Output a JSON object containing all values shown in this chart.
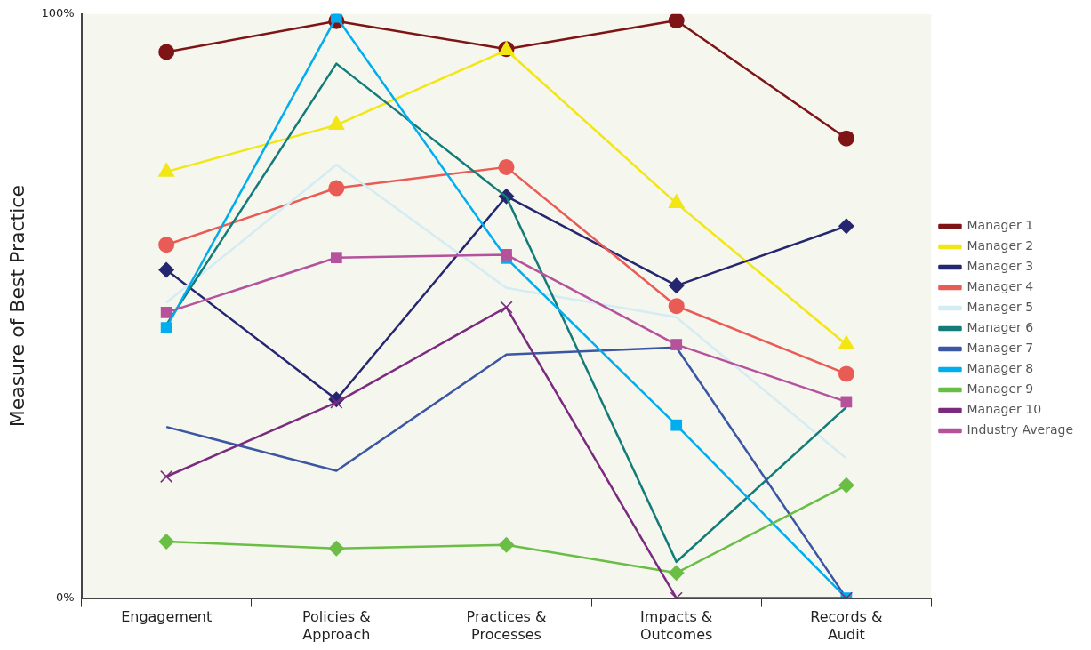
{
  "chart_data": {
    "type": "line",
    "ylabel": "Measure of Best Practice",
    "categories": [
      "Engagement",
      "Policies & Approach",
      "Practices & Processes",
      "Impacts & Outcomes",
      "Records & Audit"
    ],
    "ylim": [
      0,
      100
    ],
    "yticks": [
      {
        "value": 0,
        "label": "0%"
      },
      {
        "value": 100,
        "label": "100%"
      }
    ],
    "grid": false,
    "legend": "right",
    "line_style": "solid",
    "series": [
      {
        "name": "Manager 1",
        "color": "#7f1416",
        "marker": "circle",
        "values": [
          93.5,
          98.8,
          94,
          98.9,
          78.7
        ]
      },
      {
        "name": "Manager 2",
        "color": "#f2e614",
        "marker": "triangle",
        "values": [
          73,
          81,
          93.8,
          67.6,
          43.4
        ]
      },
      {
        "name": "Manager 3",
        "color": "#252670",
        "marker": "diamond",
        "values": [
          56.2,
          34,
          68.8,
          53.5,
          63.7
        ]
      },
      {
        "name": "Manager 4",
        "color": "#e85c55",
        "marker": "circle",
        "values": [
          60.5,
          70.2,
          73.8,
          50,
          38.4
        ]
      },
      {
        "name": "Manager 5",
        "color": "#d4ecf4",
        "marker": "none",
        "values": [
          50.6,
          74.2,
          53.1,
          48.1,
          23.9
        ]
      },
      {
        "name": "Manager 6",
        "color": "#137c78",
        "marker": "none",
        "values": [
          46.8,
          91.5,
          68.7,
          6.2,
          32.7
        ]
      },
      {
        "name": "Manager 7",
        "color": "#3b56a3",
        "marker": "none",
        "values": [
          29.3,
          21.8,
          41.7,
          42.9,
          0
        ]
      },
      {
        "name": "Manager 8",
        "color": "#00aeef",
        "marker": "square",
        "values": [
          46.3,
          99.5,
          58.2,
          29.6,
          0
        ]
      },
      {
        "name": "Manager 9",
        "color": "#6abd45",
        "marker": "diamond",
        "values": [
          9.7,
          8.5,
          9.1,
          4.3,
          19.3
        ]
      },
      {
        "name": "Manager 10",
        "color": "#7b2b7f",
        "marker": "cross",
        "values": [
          20.8,
          33.5,
          49.8,
          0,
          0
        ]
      },
      {
        "name": "Industry Average",
        "color": "#b6519c",
        "marker": "square",
        "values": [
          48.9,
          58.3,
          58.8,
          43.4,
          33.6
        ]
      }
    ]
  }
}
